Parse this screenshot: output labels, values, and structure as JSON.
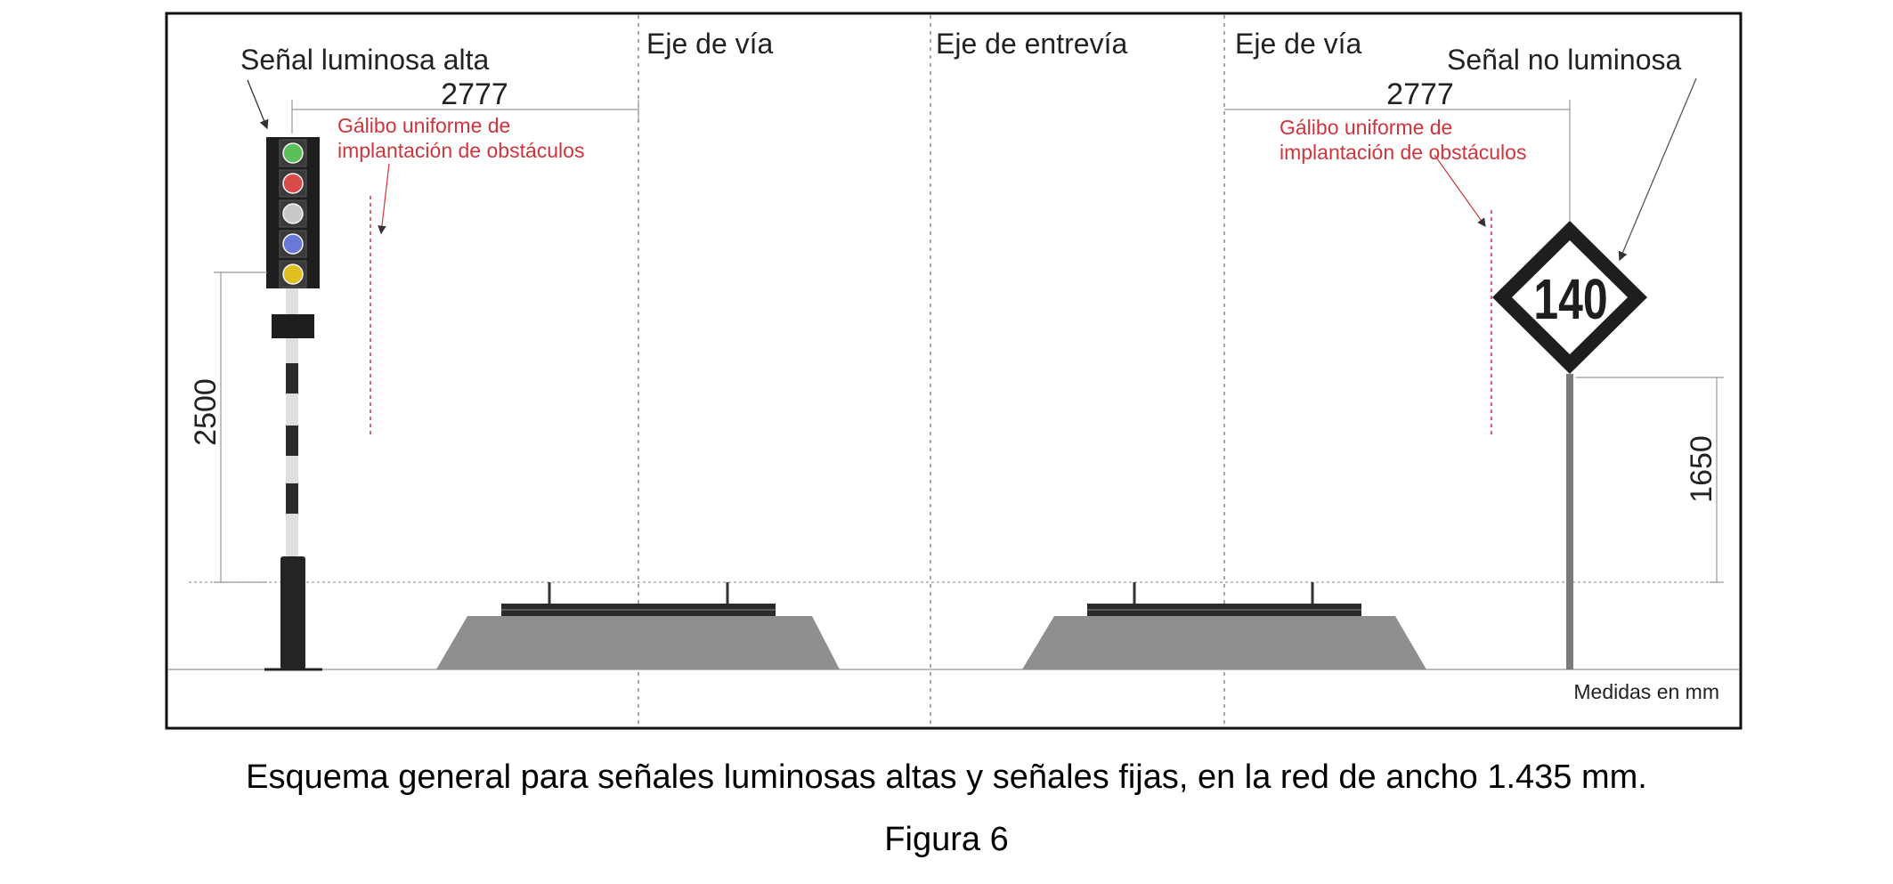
{
  "labels": {
    "senal_alta": "Señal luminosa alta",
    "senal_no_luminosa": "Señal no luminosa",
    "eje_via_left": "Eje de vía",
    "eje_entrevia": "Eje de entrevía",
    "eje_via_right": "Eje de vía",
    "galibo_left_l1": "Gálibo uniforme de",
    "galibo_left_l2": "implantación de obstáculos",
    "galibo_right_l1": "Gálibo uniforme de",
    "galibo_right_l2": "implantación de obstáculos",
    "medidas": "Medidas en mm"
  },
  "dimensions": {
    "left_horizontal": "2777",
    "right_horizontal": "2777",
    "left_height": "2500",
    "right_height": "1650"
  },
  "sign": {
    "speed": "140"
  },
  "signal_lamps": [
    "#5bbf5a",
    "#d94a4a",
    "#c8c8c8",
    "#6a78d8",
    "#e0c020"
  ],
  "caption": "Esquema general para señales luminosas altas y señales fijas, en la red de ancho 1.435 mm.",
  "figure_label": "Figura 6"
}
